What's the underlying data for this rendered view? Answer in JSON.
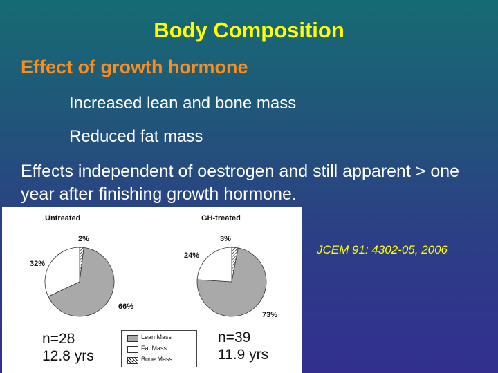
{
  "slide": {
    "title": "Body Composition",
    "subtitle": "Effect of growth hormone",
    "bullets": [
      "Increased lean and bone mass",
      "Reduced fat mass"
    ],
    "paragraph": "Effects independent of oestrogen and still apparent > one year after finishing growth hormone.",
    "citation": "JCEM 91: 4302-05, 2006",
    "colors": {
      "title": "#ffff00",
      "subtitle": "#ff8c1a",
      "text": "#ffffff"
    }
  },
  "chart_data": {
    "type": "pie",
    "panels": [
      {
        "title": "Untreated",
        "n_label": "n=28",
        "age_label": "12.8 yrs",
        "slices": [
          {
            "label": "Lean Mass",
            "value": 66,
            "text": "66%"
          },
          {
            "label": "Fat Mass",
            "value": 32,
            "text": "32%"
          },
          {
            "label": "Bone Mass",
            "value": 2,
            "text": "2%"
          }
        ]
      },
      {
        "title": "GH-treated",
        "n_label": "n=39",
        "age_label": "11.9 yrs",
        "slices": [
          {
            "label": "Lean Mass",
            "value": 73,
            "text": "73%"
          },
          {
            "label": "Fat Mass",
            "value": 24,
            "text": "24%"
          },
          {
            "label": "Bone Mass",
            "value": 3,
            "text": "3%"
          }
        ]
      }
    ],
    "legend": [
      {
        "label": "Lean Mass",
        "color": "#a9a9a9"
      },
      {
        "label": "Fat Mass",
        "color": "#ffffff"
      },
      {
        "label": "Bone Mass",
        "color": "hatched"
      }
    ],
    "legend_position": "bottom-center"
  }
}
